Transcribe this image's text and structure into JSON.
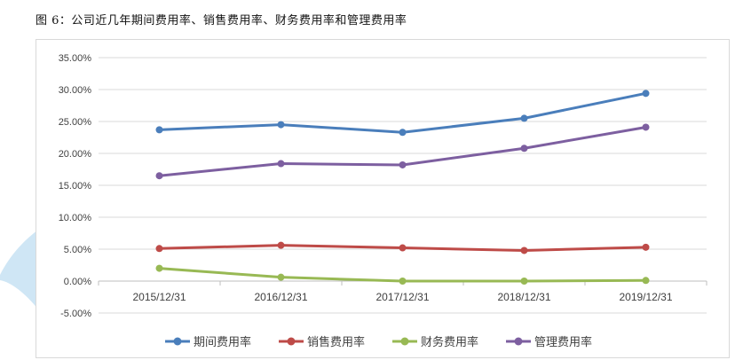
{
  "caption": "图 6：公司近几年期间费用率、销售费用率、财务费用率和管理费用率",
  "chart_data": {
    "type": "line",
    "categories": [
      "2015/12/31",
      "2016/12/31",
      "2017/12/31",
      "2018/12/31",
      "2019/12/31"
    ],
    "ylim": [
      -5,
      35
    ],
    "yticks": [
      -5,
      0,
      5,
      10,
      15,
      20,
      25,
      30,
      35
    ],
    "ytick_labels": [
      "-5.00%",
      "0.00%",
      "5.00%",
      "10.00%",
      "15.00%",
      "20.00%",
      "25.00%",
      "30.00%",
      "35.00%"
    ],
    "grid": true,
    "legend_position": "bottom",
    "series": [
      {
        "name": "期间费用率",
        "color": "#4a7ebb",
        "values": [
          23.7,
          24.5,
          23.3,
          25.5,
          29.4
        ]
      },
      {
        "name": "销售费用率",
        "color": "#be4b48",
        "values": [
          5.1,
          5.6,
          5.2,
          4.8,
          5.3
        ]
      },
      {
        "name": "财务费用率",
        "color": "#98b954",
        "values": [
          2.0,
          0.6,
          0.0,
          0.0,
          0.1
        ]
      },
      {
        "name": "管理费用率",
        "color": "#7d5fa0",
        "values": [
          16.5,
          18.4,
          18.2,
          20.8,
          24.1
        ]
      }
    ]
  }
}
